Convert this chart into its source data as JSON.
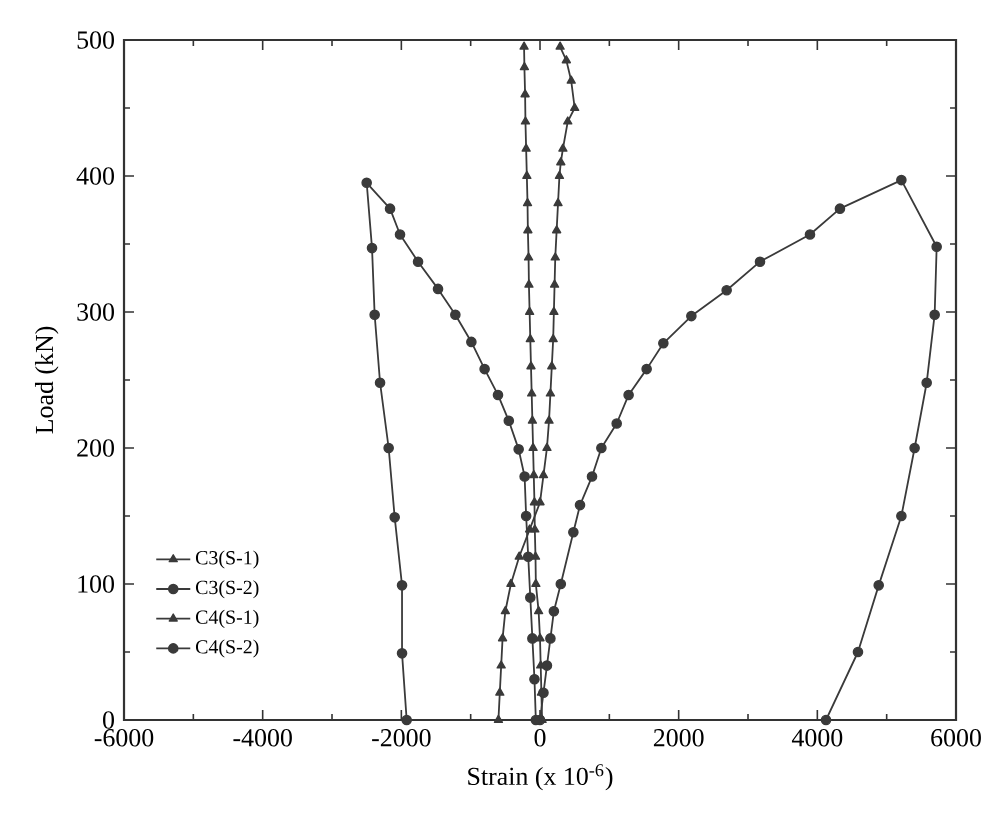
{
  "chart_data": {
    "type": "line",
    "xlabel": "Strain (x 10$^{-6}$)",
    "ylabel": "Load (kN)",
    "xlim": [
      -6000,
      6000
    ],
    "ylim": [
      0,
      500
    ],
    "xticks": [
      -6000,
      -4000,
      -2000,
      0,
      2000,
      4000,
      6000
    ],
    "yticks": [
      0,
      100,
      200,
      300,
      400,
      500
    ],
    "grid": false,
    "legend": "bottom left",
    "line_style": "solid",
    "series": [
      {
        "name": "C3(S-1)",
        "color": "#3a3a3a",
        "marker": "triangle",
        "x": [
          30,
          20,
          10,
          0,
          -20,
          -60,
          -65,
          -75,
          -80,
          -90,
          -100,
          -110,
          -120,
          -130,
          -140,
          -150,
          -160,
          -165,
          -175,
          -180,
          -190,
          -200,
          -210,
          -215,
          -225,
          -230
        ],
        "values": [
          0,
          20,
          40,
          60,
          80,
          100,
          120,
          140,
          160,
          180,
          200,
          220,
          240,
          260,
          280,
          300,
          320,
          340,
          360,
          380,
          400,
          420,
          440,
          460,
          480,
          495
        ]
      },
      {
        "name": "C3(S-2)",
        "color": "#3a3a3a",
        "marker": "circle",
        "x": [
          0,
          50,
          100,
          150,
          200,
          300,
          481,
          577,
          750,
          885,
          1106,
          1278,
          1538,
          1779,
          2183,
          2692,
          3173,
          3894,
          4326,
          5212,
          5721,
          5692,
          5577,
          5403,
          5212,
          4885,
          4586,
          4125
        ],
        "values": [
          0,
          20,
          40,
          60,
          80,
          100,
          138,
          158,
          179,
          200,
          218,
          239,
          258,
          277,
          297,
          316,
          337,
          357,
          376,
          397,
          348,
          298,
          248,
          200,
          150,
          99,
          50,
          0
        ]
      },
      {
        "name": "C4(S-1)",
        "color": "#3a3a3a",
        "marker": "triangle",
        "x": [
          -600,
          -580,
          -560,
          -540,
          -500,
          -420,
          -300,
          -150,
          0,
          50,
          100,
          130,
          150,
          170,
          190,
          200,
          210,
          220,
          240,
          260,
          280,
          300,
          330,
          400,
          500,
          450,
          380,
          290
        ],
        "values": [
          0,
          20,
          40,
          60,
          80,
          100,
          120,
          140,
          160,
          180,
          200,
          220,
          240,
          260,
          280,
          300,
          320,
          340,
          360,
          380,
          400,
          410,
          420,
          440,
          450,
          470,
          485,
          495
        ]
      },
      {
        "name": "C4(S-2)",
        "color": "#3a3a3a",
        "marker": "circle",
        "x": [
          -60,
          -80,
          -110,
          -140,
          -170,
          -200,
          -222,
          -308,
          -450,
          -606,
          -799,
          -990,
          -1221,
          -1471,
          -1759,
          -2019,
          -2163,
          -2500,
          -2423,
          -2385,
          -2307,
          -2183,
          -2096,
          -1990,
          -1990,
          -1923
        ],
        "values": [
          0,
          30,
          60,
          90,
          120,
          150,
          179,
          199,
          220,
          239,
          258,
          278,
          298,
          317,
          337,
          357,
          376,
          395,
          347,
          298,
          248,
          200,
          149,
          99,
          49,
          0
        ]
      }
    ]
  }
}
